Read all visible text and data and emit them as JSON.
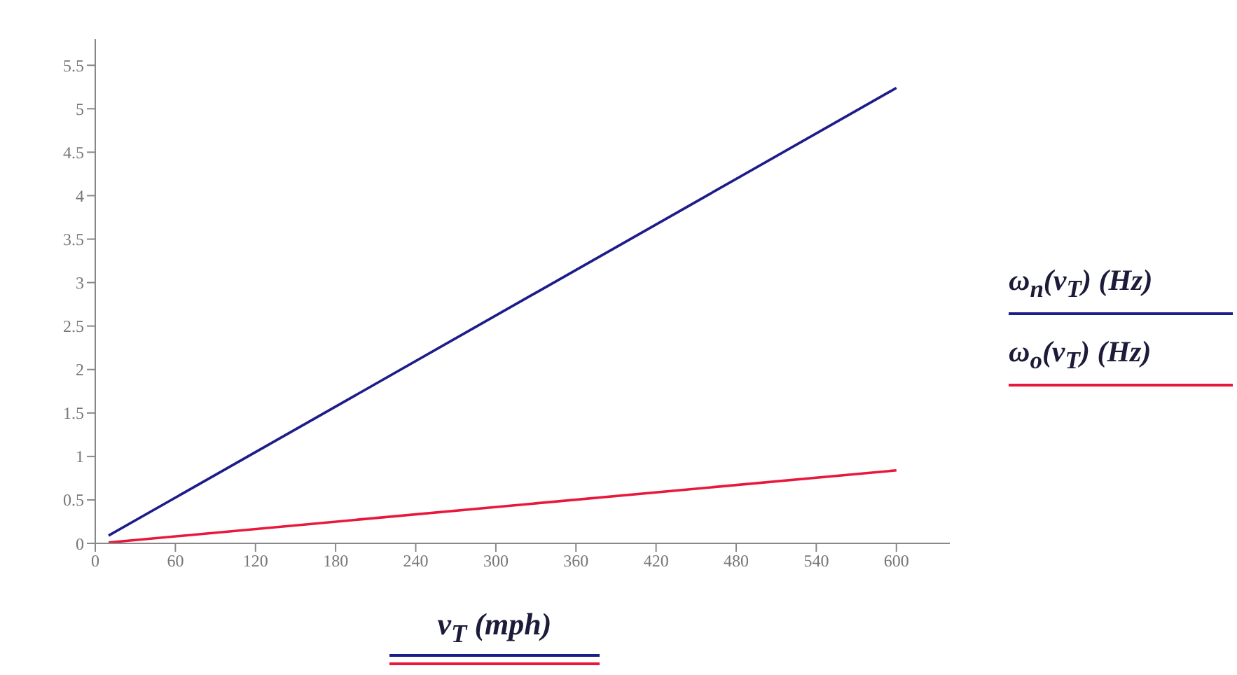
{
  "chart_data": {
    "type": "line",
    "xlabel": "v$_{T}$ (mph)",
    "x": [
      10,
      600
    ],
    "series": [
      {
        "name": "ω$_{n}$(v$_{T}$) (Hz)",
        "color": "#1c1c8a",
        "values": [
          0.09,
          5.24
        ]
      },
      {
        "name": "ω$_{o}$(v$_{T}$) (Hz)",
        "color": "#e8183c",
        "values": [
          0.01,
          0.84
        ]
      }
    ],
    "xlim": [
      0,
      640
    ],
    "xticks": [
      0,
      60,
      120,
      180,
      240,
      300,
      360,
      420,
      480,
      540,
      600
    ],
    "ylim": [
      0,
      5.8
    ],
    "yticks": [
      0,
      0.5,
      1,
      1.5,
      2,
      2.5,
      3,
      3.5,
      4,
      4.5,
      5,
      5.5
    ],
    "legend": "right",
    "marker": "none",
    "line_style": "solid"
  }
}
